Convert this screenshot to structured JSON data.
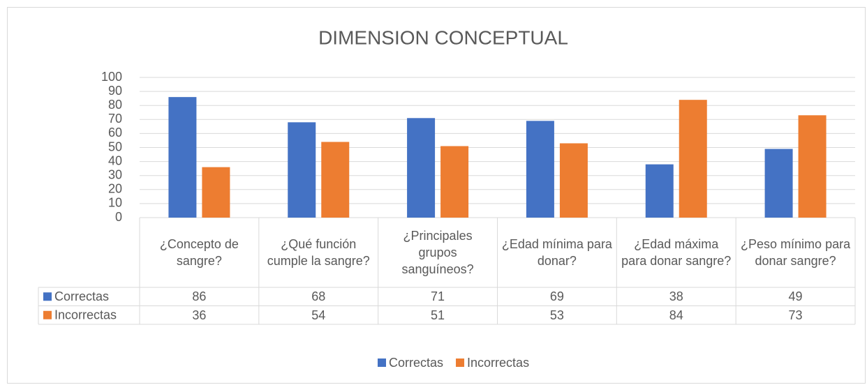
{
  "chart_data": {
    "type": "bar",
    "title": "DIMENSION CONCEPTUAL",
    "categories": [
      "¿Concepto de sangre?",
      "¿Qué función cumple la sangre?",
      "¿Principales grupos sanguíneos?",
      "¿Edad mínima para donar?",
      "¿Edad máxima para donar sangre?",
      "¿Peso mínimo para donar sangre?"
    ],
    "series": [
      {
        "name": "Correctas",
        "color": "#4472c4",
        "values": [
          86,
          68,
          71,
          69,
          38,
          49
        ]
      },
      {
        "name": "Incorrectas",
        "color": "#ed7d31",
        "values": [
          36,
          54,
          51,
          53,
          84,
          73
        ]
      }
    ],
    "ylim": [
      0,
      100
    ],
    "yticks": [
      0,
      10,
      20,
      30,
      40,
      50,
      60,
      70,
      80,
      90,
      100
    ],
    "grid": true,
    "legend": "bottom"
  }
}
